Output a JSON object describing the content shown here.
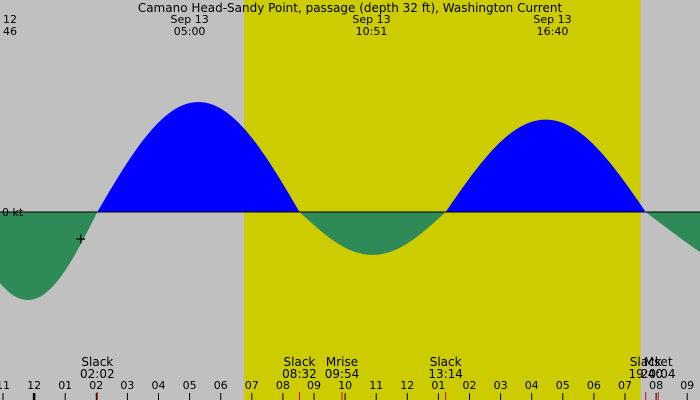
{
  "title": "Camano Head-Sandy Point, passage (depth 32 ft), Washington Current",
  "colors": {
    "night": "#c0c0c0",
    "day": "#cccc00",
    "flood": "#0000ff",
    "ebb": "#2e8b57",
    "tick": "#000000",
    "event_tick": "#cc0000"
  },
  "chart_data": {
    "type": "area",
    "ylabel": "0 kt",
    "x_unit": "hour of Sep 13",
    "daylight": {
      "start_hour": 6.75,
      "end_hour": 19.5
    },
    "series": [
      {
        "name": "flood",
        "peaks": [
          {
            "hour": 5.0,
            "value": 1.0
          },
          {
            "hour": 16.67,
            "value": 0.84
          }
        ]
      },
      {
        "name": "ebb",
        "peaks": [
          {
            "hour": -0.2,
            "value": -0.8
          },
          {
            "hour": 10.85,
            "value": -0.39
          }
        ]
      }
    ],
    "zero_crossings": [
      2.033,
      8.533,
      13.233,
      19.667
    ],
    "marker": {
      "hour": 1.5,
      "value": -0.25,
      "symbol": "+"
    },
    "top_labels": [
      {
        "date": "12",
        "time": "46",
        "hour": -1.0,
        "align": "start"
      },
      {
        "date": "Sep 13",
        "time": "05:00",
        "hour": 5.0,
        "align": "middle"
      },
      {
        "date": "Sep 13",
        "time": "10:51",
        "hour": 10.85,
        "align": "middle"
      },
      {
        "date": "Sep 13",
        "time": "16:40",
        "hour": 16.67,
        "align": "middle"
      }
    ],
    "bottom_events": [
      {
        "label": "Slack",
        "time": "02:02",
        "hour": 2.033
      },
      {
        "label": "Slack",
        "time": "08:32",
        "hour": 8.533
      },
      {
        "label": "Mrise",
        "time": "09:54",
        "hour": 9.9
      },
      {
        "label": "Slack",
        "time": "13:14",
        "hour": 13.233
      },
      {
        "label": "Slack",
        "time": "19:40",
        "hour": 19.667
      },
      {
        "label": "Mset",
        "time": "20:04",
        "hour": 20.067
      }
    ],
    "hour_ticks": [
      "11",
      "12",
      "01",
      "02",
      "03",
      "04",
      "05",
      "06",
      "07",
      "08",
      "09",
      "10",
      "11",
      "12",
      "01",
      "02",
      "03",
      "04",
      "05",
      "06",
      "07",
      "08",
      "09"
    ],
    "hour_tick_start": -1
  }
}
